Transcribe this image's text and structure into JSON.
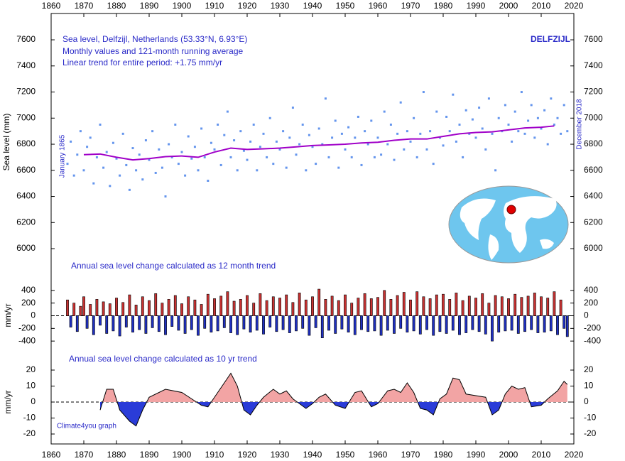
{
  "chart_data": [
    {
      "type": "scatter",
      "title": "Sea level, Delfzijl, Netherlands (53.33°N, 6.93°E)",
      "annotations": [
        "Monthly values and 121-month running average",
        "Linear trend for entire period: +1.75 mm/yr",
        "DELFZIJL",
        "January 1865",
        "December 2018"
      ],
      "y_label": "Sea level (mm)",
      "xlim": [
        1860,
        2020
      ],
      "xticks": [
        1860,
        1870,
        1880,
        1890,
        1900,
        1910,
        1920,
        1930,
        1940,
        1950,
        1960,
        1970,
        1980,
        1990,
        2000,
        2010,
        2020
      ],
      "ylim": [
        5900,
        7800
      ],
      "yticks": [
        6000,
        6200,
        6400,
        6600,
        6800,
        7000,
        7200,
        7400,
        7600
      ],
      "color": "#6495ed",
      "x": [
        1865,
        1866,
        1867,
        1868,
        1869,
        1870,
        1871,
        1872,
        1873,
        1874,
        1875,
        1876,
        1877,
        1878,
        1879,
        1880,
        1881,
        1882,
        1883,
        1884,
        1885,
        1886,
        1887,
        1888,
        1889,
        1890,
        1891,
        1892,
        1893,
        1894,
        1895,
        1896,
        1897,
        1898,
        1899,
        1900,
        1901,
        1902,
        1903,
        1904,
        1905,
        1906,
        1907,
        1908,
        1909,
        1910,
        1911,
        1912,
        1913,
        1914,
        1915,
        1916,
        1917,
        1918,
        1919,
        1920,
        1921,
        1922,
        1923,
        1924,
        1925,
        1926,
        1927,
        1928,
        1929,
        1930,
        1931,
        1932,
        1933,
        1934,
        1935,
        1936,
        1937,
        1938,
        1939,
        1940,
        1941,
        1942,
        1943,
        1944,
        1945,
        1946,
        1947,
        1948,
        1949,
        1950,
        1951,
        1952,
        1953,
        1954,
        1955,
        1956,
        1957,
        1958,
        1959,
        1960,
        1961,
        1962,
        1963,
        1964,
        1965,
        1966,
        1967,
        1968,
        1969,
        1970,
        1971,
        1972,
        1973,
        1974,
        1975,
        1976,
        1977,
        1978,
        1979,
        1980,
        1981,
        1982,
        1983,
        1984,
        1985,
        1986,
        1987,
        1988,
        1989,
        1990,
        1991,
        1992,
        1993,
        1994,
        1995,
        1996,
        1997,
        1998,
        1999,
        2000,
        2001,
        2002,
        2003,
        2004,
        2005,
        2006,
        2007,
        2008,
        2009,
        2010,
        2011,
        2012,
        2013,
        2014,
        2015,
        2016,
        2017,
        2018
      ],
      "values": [
        6650,
        6820,
        6560,
        6720,
        6900,
        6600,
        6780,
        6850,
        6500,
        6700,
        6950,
        6620,
        6740,
        6480,
        6810,
        6690,
        6560,
        6880,
        6640,
        6450,
        6770,
        6600,
        6720,
        6530,
        6830,
        6680,
        6900,
        6580,
        6760,
        6620,
        6400,
        6800,
        6700,
        6950,
        6650,
        6740,
        6560,
        6860,
        6690,
        6780,
        6600,
        6920,
        6700,
        6520,
        6810,
        6760,
        6950,
        6640,
        6870,
        7050,
        6700,
        6830,
        6600,
        6900,
        6750,
        6680,
        6820,
        6950,
        6600,
        6780,
        6880,
        6700,
        7000,
        6650,
        6820,
        6760,
        6900,
        6620,
        6850,
        7080,
        6720,
        6800,
        6950,
        6600,
        6870,
        6780,
        6650,
        6920,
        6800,
        7150,
        6700,
        6850,
        6980,
        6620,
        6880,
        6760,
        6930,
        6700,
        6850,
        7010,
        6640,
        6900,
        6800,
        6980,
        6700,
        6850,
        6720,
        7050,
        6800,
        6950,
        6680,
        6880,
        7120,
        6760,
        6900,
        6820,
        7000,
        6700,
        6880,
        7200,
        6760,
        6900,
        6650,
        7050,
        6850,
        6790,
        7010,
        6900,
        7180,
        6820,
        6950,
        6700,
        7060,
        6880,
        6990,
        6850,
        7080,
        6920,
        6760,
        7150,
        6880,
        6600,
        7000,
        6900,
        7100,
        6950,
        6820,
        7050,
        6900,
        7200,
        6880,
        6980,
        7100,
        6850,
        7000,
        6920,
        7060,
        6800,
        7150,
        6950,
        7000,
        6880,
        7100,
        6900
      ],
      "running_average": {
        "color": "#a000c8",
        "x": [
          1870,
          1875,
          1880,
          1885,
          1890,
          1895,
          1900,
          1905,
          1910,
          1915,
          1920,
          1925,
          1930,
          1935,
          1940,
          1945,
          1950,
          1955,
          1960,
          1965,
          1970,
          1975,
          1980,
          1985,
          1990,
          1995,
          2000,
          2005,
          2010,
          2014
        ],
        "values": [
          6720,
          6725,
          6700,
          6680,
          6690,
          6705,
          6710,
          6700,
          6740,
          6770,
          6760,
          6765,
          6770,
          6780,
          6790,
          6795,
          6800,
          6810,
          6815,
          6830,
          6840,
          6840,
          6860,
          6880,
          6890,
          6895,
          6910,
          6925,
          6930,
          6940
        ]
      }
    },
    {
      "type": "bar",
      "title": "Annual sea level change calculated as 12 month trend",
      "y_label": "mm/yr",
      "xlim": [
        1860,
        2020
      ],
      "ylim": [
        -600,
        600
      ],
      "yticks": [
        400,
        200,
        0,
        -200,
        -400
      ],
      "pos_color": "#c83232",
      "neg_color": "#2030c0",
      "x": [
        1865,
        1866,
        1867,
        1868,
        1869,
        1870,
        1871,
        1872,
        1873,
        1874,
        1875,
        1876,
        1877,
        1878,
        1879,
        1880,
        1881,
        1882,
        1883,
        1884,
        1885,
        1886,
        1887,
        1888,
        1889,
        1890,
        1891,
        1892,
        1893,
        1894,
        1895,
        1896,
        1897,
        1898,
        1899,
        1900,
        1901,
        1902,
        1903,
        1904,
        1905,
        1906,
        1907,
        1908,
        1909,
        1910,
        1911,
        1912,
        1913,
        1914,
        1915,
        1916,
        1917,
        1918,
        1919,
        1920,
        1921,
        1922,
        1923,
        1924,
        1925,
        1926,
        1927,
        1928,
        1929,
        1930,
        1931,
        1932,
        1933,
        1934,
        1935,
        1936,
        1937,
        1938,
        1939,
        1940,
        1941,
        1942,
        1943,
        1944,
        1945,
        1946,
        1947,
        1948,
        1949,
        1950,
        1951,
        1952,
        1953,
        1954,
        1955,
        1956,
        1957,
        1958,
        1959,
        1960,
        1961,
        1962,
        1963,
        1964,
        1965,
        1966,
        1967,
        1968,
        1969,
        1970,
        1971,
        1972,
        1973,
        1974,
        1975,
        1976,
        1977,
        1978,
        1979,
        1980,
        1981,
        1982,
        1983,
        1984,
        1985,
        1986,
        1987,
        1988,
        1989,
        1990,
        1991,
        1992,
        1993,
        1994,
        1995,
        1996,
        1997,
        1998,
        1999,
        2000,
        2001,
        2002,
        2003,
        2004,
        2005,
        2006,
        2007,
        2008,
        2009,
        2010,
        2011,
        2012,
        2013,
        2014,
        2015,
        2016,
        2017,
        2018
      ],
      "values": [
        250,
        -180,
        200,
        -250,
        150,
        300,
        -200,
        180,
        -300,
        260,
        -150,
        220,
        -280,
        190,
        -240,
        280,
        -320,
        210,
        -180,
        330,
        -260,
        170,
        -220,
        300,
        -280,
        240,
        -190,
        350,
        -250,
        200,
        -300,
        260,
        -170,
        320,
        -230,
        190,
        -280,
        300,
        -220,
        250,
        -310,
        180,
        -200,
        340,
        -260,
        270,
        -240,
        310,
        -190,
        380,
        -270,
        230,
        -300,
        260,
        -210,
        320,
        -260,
        200,
        -230,
        350,
        -290,
        240,
        -180,
        300,
        -250,
        280,
        -220,
        330,
        -270,
        210,
        -240,
        360,
        -200,
        250,
        -310,
        300,
        -190,
        420,
        -350,
        260,
        -230,
        310,
        -280,
        240,
        -210,
        330,
        -260,
        200,
        -300,
        280,
        -220,
        350,
        -250,
        270,
        -240,
        290,
        -310,
        400,
        -230,
        260,
        -280,
        320,
        -200,
        370,
        -260,
        250,
        -240,
        380,
        -290,
        300,
        -220,
        270,
        -310,
        330,
        -250,
        340,
        -280,
        260,
        -230,
        360,
        -300,
        240,
        -270,
        310,
        -220,
        280,
        -250,
        350,
        -290,
        200,
        -400,
        320,
        -260,
        300,
        -240,
        270,
        -230,
        340,
        -280,
        290,
        -250,
        310,
        -220,
        360,
        -270,
        300,
        -260,
        280,
        -240,
        380,
        -300,
        250,
        -200,
        -330
      ]
    },
    {
      "type": "area",
      "title": "Annual sea level change calculated as 10 yr trend",
      "y_label": "mm/yr",
      "note": "Climate4you graph",
      "xlim": [
        1860,
        2020
      ],
      "xticks": [
        1860,
        1870,
        1880,
        1890,
        1900,
        1910,
        1920,
        1930,
        1940,
        1950,
        1960,
        1970,
        1980,
        1990,
        2000,
        2010,
        2020
      ],
      "ylim": [
        -25,
        25
      ],
      "yticks": [
        20,
        10,
        0,
        -10,
        -20
      ],
      "pos_color": "#f2a4a4",
      "neg_color": "#2a3cd8",
      "x": [
        1875,
        1877,
        1879,
        1881,
        1884,
        1886,
        1888,
        1890,
        1895,
        1900,
        1903,
        1906,
        1908,
        1910,
        1913,
        1915,
        1917,
        1919,
        1921,
        1923,
        1925,
        1928,
        1930,
        1932,
        1934,
        1936,
        1938,
        1940,
        1942,
        1944,
        1947,
        1950,
        1953,
        1955,
        1958,
        1960,
        1963,
        1965,
        1967,
        1969,
        1971,
        1973,
        1975,
        1977,
        1979,
        1981,
        1983,
        1985,
        1987,
        1990,
        1993,
        1995,
        1997,
        1999,
        2001,
        2003,
        2005,
        2007,
        2010,
        2012,
        2015,
        2017,
        2018
      ],
      "values": [
        -5,
        8,
        8,
        -5,
        -12,
        -15,
        -5,
        3,
        8,
        6,
        2,
        -2,
        -3,
        3,
        12,
        18,
        10,
        -5,
        -8,
        -2,
        3,
        8,
        5,
        7,
        2,
        -1,
        -4,
        -1,
        3,
        5,
        -2,
        -4,
        6,
        7,
        -3,
        -1,
        7,
        8,
        6,
        12,
        6,
        -4,
        -5,
        -8,
        2,
        5,
        15,
        14,
        5,
        4,
        3,
        -8,
        -5,
        5,
        10,
        8,
        9,
        -3,
        -2,
        2,
        7,
        13,
        11
      ]
    }
  ]
}
